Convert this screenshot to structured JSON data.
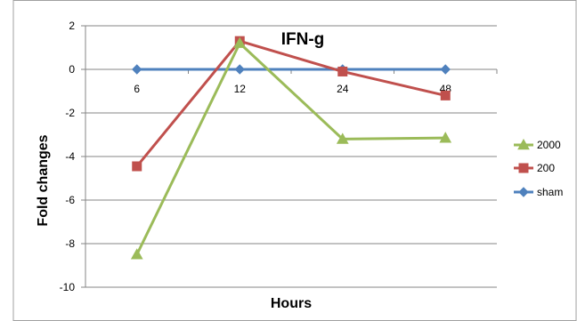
{
  "chart_data": {
    "type": "line",
    "title": "IFN-g",
    "xlabel": "Hours",
    "ylabel": "Fold changes",
    "categories": [
      "6",
      "12",
      "24",
      "48"
    ],
    "ylim": [
      -10,
      2
    ],
    "yticks": [
      "2",
      "0",
      "-2",
      "-4",
      "-6",
      "-8",
      "-10"
    ],
    "grid": true,
    "legend_position": "right",
    "series": [
      {
        "name": "2000",
        "values": [
          -8.5,
          1.2,
          -3.2,
          -3.15
        ],
        "color": "#9BBB59",
        "marker": "triangle"
      },
      {
        "name": "200",
        "values": [
          -4.45,
          1.3,
          -0.1,
          -1.2
        ],
        "color": "#C0504D",
        "marker": "square"
      },
      {
        "name": "sham",
        "values": [
          0,
          0,
          0,
          0
        ],
        "color": "#4F81BD",
        "marker": "diamond"
      }
    ]
  }
}
